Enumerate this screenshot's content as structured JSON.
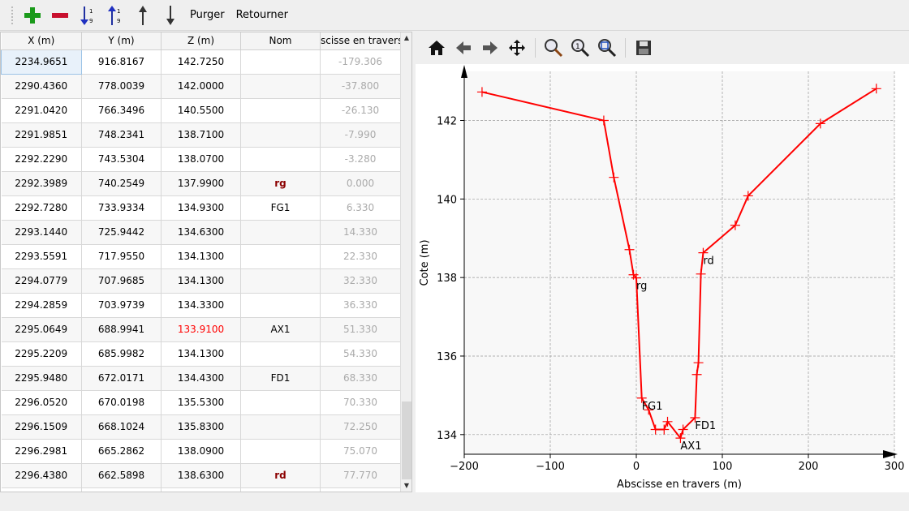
{
  "toolbar": {
    "items": [
      {
        "icon": "add-row-icon"
      },
      {
        "icon": "remove-row-icon"
      },
      {
        "icon": "sort-ascending-icon"
      },
      {
        "icon": "sort-descending-icon"
      },
      {
        "icon": "move-up-icon"
      },
      {
        "icon": "move-down-icon"
      }
    ],
    "purge_label": "Purger",
    "reverse_label": "Retourner"
  },
  "table": {
    "headers": [
      "X (m)",
      "Y (m)",
      "Z (m)",
      "Nom",
      "scisse en travers"
    ],
    "rows": [
      [
        "2234.9651",
        "916.8167",
        "142.7250",
        "",
        "-179.306"
      ],
      [
        "2290.4360",
        "778.0039",
        "142.0000",
        "",
        "-37.800"
      ],
      [
        "2291.0420",
        "766.3496",
        "140.5500",
        "",
        "-26.130"
      ],
      [
        "2291.9851",
        "748.2341",
        "138.7100",
        "",
        "-7.990"
      ],
      [
        "2292.2290",
        "743.5304",
        "138.0700",
        "",
        "-3.280"
      ],
      [
        "2292.3989",
        "740.2549",
        "137.9900",
        "rg",
        "0.000"
      ],
      [
        "2292.7280",
        "733.9334",
        "134.9300",
        "FG1",
        "6.330"
      ],
      [
        "2293.1440",
        "725.9442",
        "134.6300",
        "",
        "14.330"
      ],
      [
        "2293.5591",
        "717.9550",
        "134.1300",
        "",
        "22.330"
      ],
      [
        "2294.0779",
        "707.9685",
        "134.1300",
        "",
        "32.330"
      ],
      [
        "2294.2859",
        "703.9739",
        "134.3300",
        "",
        "36.330"
      ],
      [
        "2295.0649",
        "688.9941",
        "133.9100",
        "AX1",
        "51.330"
      ],
      [
        "2295.2209",
        "685.9982",
        "134.1300",
        "",
        "54.330"
      ],
      [
        "2295.9480",
        "672.0171",
        "134.4300",
        "FD1",
        "68.330"
      ],
      [
        "2296.0520",
        "670.0198",
        "135.5300",
        "",
        "70.330"
      ],
      [
        "2296.1509",
        "668.1024",
        "135.8300",
        "",
        "72.250"
      ],
      [
        "2296.2981",
        "665.2862",
        "138.0900",
        "",
        "75.070"
      ],
      [
        "2296.4380",
        "662.5898",
        "138.6300",
        "rd",
        "77.770"
      ],
      [
        "",
        "",
        "",
        "",
        ""
      ]
    ]
  },
  "plot_toolbar": {
    "items": [
      "home-icon",
      "back-icon",
      "forward-icon",
      "pan-icon",
      "zoom-icon",
      "zoom-1-icon",
      "zoom-fit-icon",
      "save-icon"
    ]
  },
  "chart_data": {
    "type": "line",
    "xlabel": "Abscisse en travers (m)",
    "ylabel": "Cote (m)",
    "xlim": [
      -200,
      300
    ],
    "ylim": [
      133.5,
      143.25
    ],
    "xticks": [
      -200,
      -100,
      0,
      100,
      200,
      300
    ],
    "xtick_labels": [
      "−200",
      "−100",
      "0",
      "100",
      "200",
      "300"
    ],
    "yticks": [
      134,
      136,
      138,
      140,
      142
    ],
    "ytick_labels": [
      "134",
      "136",
      "138",
      "140",
      "142"
    ],
    "grid": true,
    "line_color": "#ff0000",
    "marker": "+",
    "x": [
      -179.306,
      -37.8,
      -26.13,
      -7.99,
      -3.28,
      0,
      6.33,
      14.33,
      22.33,
      32.33,
      36.33,
      51.33,
      54.33,
      68.33,
      70.33,
      72.25,
      75.07,
      77.77,
      115,
      130,
      214,
      279
    ],
    "y": [
      142.725,
      142,
      140.55,
      138.71,
      138.07,
      137.99,
      134.93,
      134.63,
      134.13,
      134.13,
      134.33,
      133.91,
      134.13,
      134.43,
      135.53,
      135.83,
      138.09,
      138.63,
      139.33,
      140.08,
      141.92,
      142.81
    ],
    "annotations": [
      {
        "text": "rg",
        "x": 0,
        "y": 137.99
      },
      {
        "text": "FG1",
        "x": 6.33,
        "y": 134.93
      },
      {
        "text": "AX1",
        "x": 51.33,
        "y": 133.91
      },
      {
        "text": "FD1",
        "x": 68.33,
        "y": 134.43
      },
      {
        "text": "rd",
        "x": 77.77,
        "y": 138.63
      }
    ]
  }
}
